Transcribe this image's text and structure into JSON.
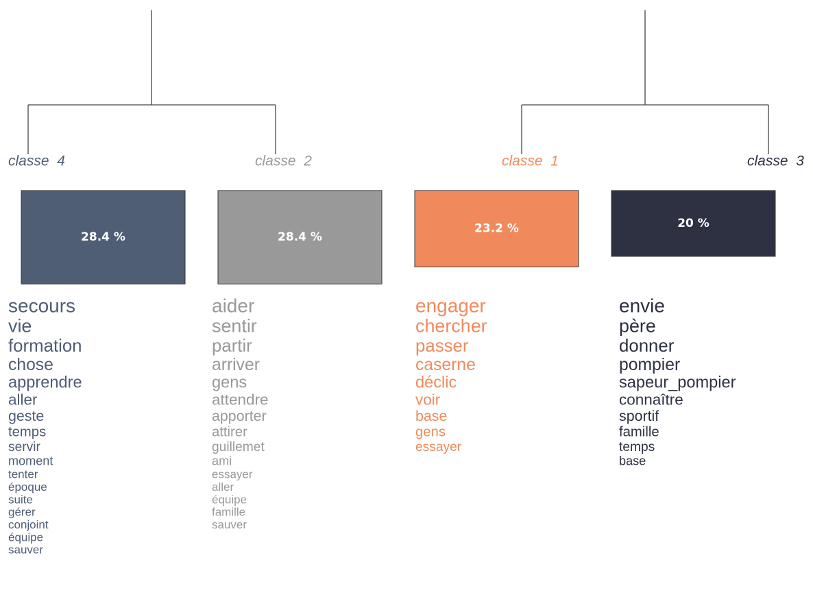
{
  "classes": [
    {
      "label": "classe  4",
      "color": "#4f5d75",
      "value": 28.4,
      "value_label": "28.4 %",
      "words": [
        "secours",
        "vie",
        "formation",
        "chose",
        "apprendre",
        "aller",
        "geste",
        "temps",
        "servir",
        "moment",
        "tenter",
        "époque",
        "suite",
        "gérer",
        "conjoint",
        "équipe",
        "sauver"
      ]
    },
    {
      "label": "classe  2",
      "color": "#999999",
      "value": 28.4,
      "value_label": "28.4 %",
      "words": [
        "aider",
        "sentir",
        "partir",
        "arriver",
        "gens",
        "attendre",
        "apporter",
        "attirer",
        "guillemet",
        "ami",
        "essayer",
        "aller",
        "équipe",
        "famille",
        "sauver"
      ]
    },
    {
      "label": "classe  1",
      "color": "#f08a5d",
      "value": 23.2,
      "value_label": "23.2 %",
      "words": [
        "engager",
        "chercher",
        "passer",
        "caserne",
        "déclic",
        "voir",
        "base",
        "gens",
        "essayer"
      ]
    },
    {
      "label": "classe  3",
      "color": "#2d3142",
      "value": 20,
      "value_label": "20 %",
      "words": [
        "envie",
        "père",
        "donner",
        "pompier",
        "sapeur_pompier",
        "connaître",
        "sportif",
        "famille",
        "temps",
        "base"
      ]
    }
  ]
}
